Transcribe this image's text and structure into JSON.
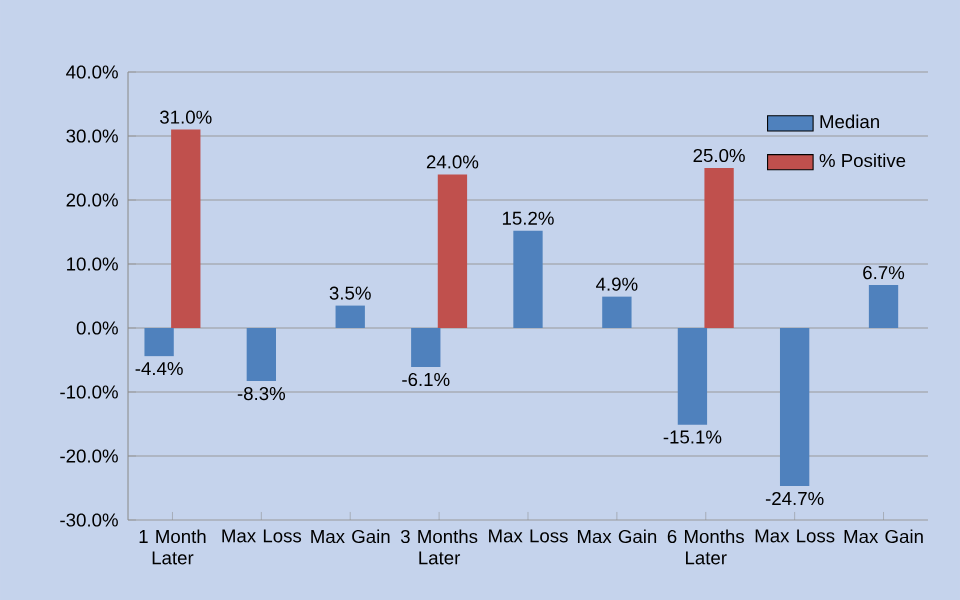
{
  "chart_data": {
    "type": "bar",
    "categories": [
      "1 Month Later",
      "Max Loss",
      "Max Gain",
      "3 Months Later",
      "Max Loss",
      "Max Gain",
      "6 Months Later",
      "Max Loss",
      "Max Gain"
    ],
    "series": [
      {
        "name": "Median",
        "color": "#4f81bd",
        "values": [
          -4.4,
          -8.3,
          3.5,
          -6.1,
          15.2,
          4.9,
          -15.1,
          -24.7,
          6.7
        ],
        "value_labels": [
          "-4.4%",
          "-8.3%",
          "3.5%",
          "-6.1%",
          "15.2%",
          "4.9%",
          "-15.1%",
          "-24.7%",
          "6.7%"
        ]
      },
      {
        "name": "% Positive",
        "color": "#c0504d",
        "values": [
          31.0,
          null,
          null,
          24.0,
          null,
          null,
          25.0,
          null,
          null
        ],
        "value_labels": [
          "31.0%",
          null,
          null,
          "24.0%",
          null,
          null,
          "25.0%",
          null,
          null
        ]
      }
    ],
    "ylim": [
      -30,
      40
    ],
    "yticks": [
      {
        "value": -30,
        "label": "-30.0%"
      },
      {
        "value": -20,
        "label": "-20.0%"
      },
      {
        "value": -10,
        "label": "-10.0%"
      },
      {
        "value": 0,
        "label": "0.0%"
      },
      {
        "value": 10,
        "label": "10.0%"
      },
      {
        "value": 20,
        "label": "20.0%"
      },
      {
        "value": 30,
        "label": "30.0%"
      },
      {
        "value": 40,
        "label": "40.0%"
      }
    ],
    "grid": "y",
    "legend": "top right"
  }
}
